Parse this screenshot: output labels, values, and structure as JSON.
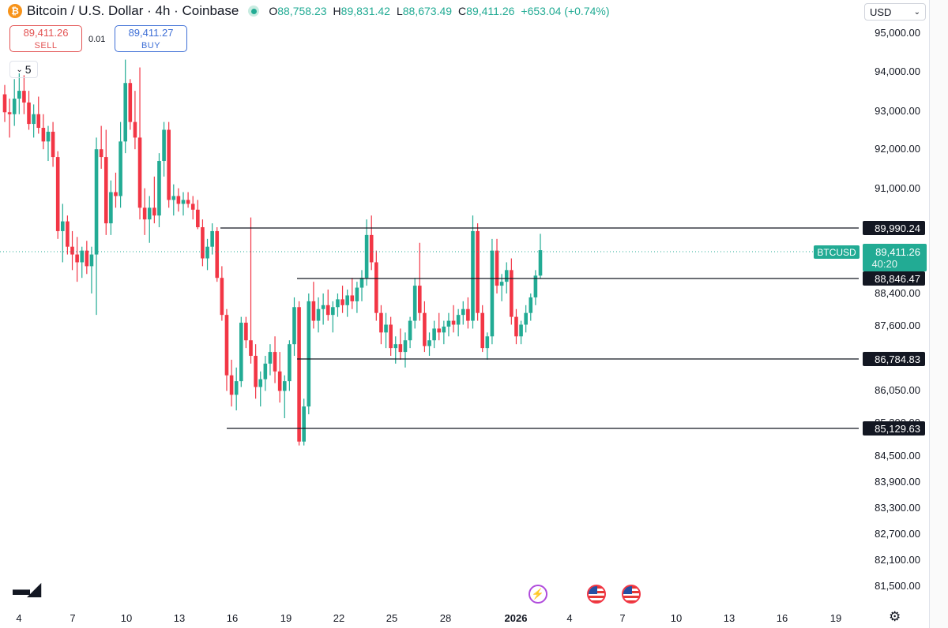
{
  "header": {
    "symbol_icon": "bitcoin-icon",
    "title": "Bitcoin / U.S. Dollar · 4h · Coinbase",
    "ohlc": [
      {
        "key": "O",
        "value": "88,758.23"
      },
      {
        "key": "H",
        "value": "89,831.42"
      },
      {
        "key": "L",
        "value": "88,673.49"
      },
      {
        "key": "C",
        "value": "89,411.26"
      }
    ],
    "change": "+653.04 (+0.74%)"
  },
  "trade": {
    "sell_price": "89,411.26",
    "sell_label": "SELL",
    "buy_price": "89,411.27",
    "buy_label": "BUY",
    "spread": "0.01"
  },
  "collapse_count": "5",
  "currency": "USD",
  "colors": {
    "up": "#22ab94",
    "down": "#f23645",
    "text": "#131722",
    "muted": "#6a6d78"
  },
  "chart_data": {
    "type": "candlestick",
    "symbol_label": "BTCUSD",
    "current_price": 89411.26,
    "current_price_text": "89,411.26",
    "countdown": "40:20",
    "y_ticks": [
      "95,000.00",
      "94,000.00",
      "93,000.00",
      "92,000.00",
      "91,000.00",
      "88,400.00",
      "87,600.00",
      "86,050.00",
      "85,300.00",
      "84,500.00",
      "83,900.00",
      "83,300.00",
      "82,700.00",
      "82,100.00",
      "81,500.00"
    ],
    "x_ticks": [
      "4",
      "7",
      "10",
      "13",
      "16",
      "19",
      "22",
      "25",
      "28",
      "2026",
      "4",
      "7",
      "10",
      "13",
      "16",
      "19"
    ],
    "levels": [
      {
        "value": 89990.24,
        "label": "89,990.24"
      },
      {
        "value": 88846.47,
        "label": "88,846.47"
      },
      {
        "value": 86784.83,
        "label": "86,784.83"
      },
      {
        "value": 85129.63,
        "label": "85,129.63"
      }
    ],
    "candles": [
      [
        93410,
        93650,
        92700,
        92950
      ],
      [
        92950,
        93300,
        92300,
        92900
      ],
      [
        92900,
        93800,
        92600,
        93300
      ],
      [
        93300,
        93950,
        92900,
        93500
      ],
      [
        93500,
        93900,
        92900,
        93200
      ],
      [
        93200,
        93500,
        92500,
        92650
      ],
      [
        92650,
        93150,
        92300,
        92900
      ],
      [
        92900,
        93350,
        92400,
        92550
      ],
      [
        92550,
        92900,
        92000,
        92200
      ],
      [
        92200,
        92600,
        91700,
        92450
      ],
      [
        92450,
        92700,
        91550,
        91800
      ],
      [
        91800,
        91950,
        89700,
        89900
      ],
      [
        89900,
        90600,
        89100,
        90150
      ],
      [
        90150,
        90300,
        89300,
        89500
      ],
      [
        89500,
        89900,
        88900,
        89300
      ],
      [
        89300,
        89750,
        88600,
        89100
      ],
      [
        89100,
        89500,
        88700,
        89400
      ],
      [
        89400,
        89650,
        88800,
        89000
      ],
      [
        89000,
        89500,
        88300,
        89300
      ],
      [
        89300,
        92300,
        87750,
        92000
      ],
      [
        92000,
        92600,
        91500,
        91800
      ],
      [
        91800,
        92500,
        89800,
        90100
      ],
      [
        90100,
        91200,
        89800,
        90900
      ],
      [
        90900,
        91400,
        90500,
        90800
      ],
      [
        90800,
        92700,
        90500,
        92200
      ],
      [
        92200,
        94300,
        91900,
        93700
      ],
      [
        93700,
        93800,
        92500,
        92700
      ],
      [
        92700,
        93500,
        92000,
        92300
      ],
      [
        92300,
        94100,
        90200,
        90500
      ],
      [
        90500,
        91000,
        89800,
        90200
      ],
      [
        90200,
        90800,
        89600,
        90500
      ],
      [
        90500,
        91300,
        90100,
        90300
      ],
      [
        90300,
        91900,
        90000,
        91700
      ],
      [
        91700,
        92700,
        91300,
        92500
      ],
      [
        92500,
        92700,
        90500,
        90700
      ],
      [
        90700,
        91100,
        90300,
        90800
      ],
      [
        90800,
        91000,
        90400,
        90600
      ],
      [
        90600,
        90900,
        90300,
        90700
      ],
      [
        90700,
        90900,
        90500,
        90600
      ],
      [
        90600,
        90800,
        90200,
        90450
      ],
      [
        90450,
        90700,
        89950,
        90000
      ],
      [
        90000,
        90200,
        89000,
        89200
      ],
      [
        89200,
        89700,
        88900,
        89500
      ],
      [
        89500,
        90100,
        89300,
        89900
      ],
      [
        89900,
        90000,
        88600,
        88700
      ],
      [
        88700,
        89000,
        87600,
        87750
      ],
      [
        87750,
        87900,
        85800,
        86200
      ],
      [
        86200,
        86600,
        85400,
        85700
      ],
      [
        85700,
        86400,
        85300,
        86050
      ],
      [
        86050,
        87700,
        85900,
        87550
      ],
      [
        87550,
        87700,
        86900,
        87100
      ],
      [
        87100,
        90250,
        86500,
        86700
      ],
      [
        86700,
        87000,
        85600,
        85900
      ],
      [
        85900,
        86300,
        85400,
        86100
      ],
      [
        86100,
        86700,
        85800,
        86500
      ],
      [
        86500,
        87000,
        86200,
        86800
      ],
      [
        86800,
        87200,
        86000,
        86300
      ],
      [
        86300,
        86800,
        85500,
        85800
      ],
      [
        85800,
        86200,
        85100,
        86050
      ],
      [
        86050,
        87100,
        85800,
        87000
      ],
      [
        87000,
        88200,
        86700,
        87950
      ],
      [
        87950,
        88100,
        84400,
        84500
      ],
      [
        84500,
        85600,
        84400,
        85400
      ],
      [
        85400,
        88300,
        85200,
        88100
      ],
      [
        88100,
        88600,
        87400,
        87600
      ],
      [
        87600,
        88200,
        87300,
        87900
      ],
      [
        87900,
        88300,
        87500,
        88000
      ],
      [
        88000,
        88400,
        87600,
        87750
      ],
      [
        87750,
        88100,
        87300,
        87950
      ],
      [
        87950,
        88300,
        87700,
        88150
      ],
      [
        88150,
        88500,
        87800,
        88000
      ],
      [
        88000,
        88400,
        87700,
        88250
      ],
      [
        88250,
        88700,
        87900,
        88100
      ],
      [
        88100,
        88600,
        87800,
        88450
      ],
      [
        88450,
        88900,
        88100,
        88700
      ],
      [
        88700,
        90200,
        88500,
        89800
      ],
      [
        89800,
        90300,
        88900,
        89100
      ],
      [
        89100,
        89400,
        87600,
        87800
      ],
      [
        87800,
        88000,
        87000,
        87300
      ],
      [
        87300,
        87800,
        86900,
        87500
      ],
      [
        87500,
        87700,
        86700,
        86900
      ],
      [
        86900,
        87200,
        86500,
        87000
      ],
      [
        87000,
        87400,
        86600,
        86800
      ],
      [
        86800,
        87300,
        86400,
        87100
      ],
      [
        87100,
        87700,
        86900,
        87600
      ],
      [
        87600,
        88700,
        87400,
        88500
      ],
      [
        88500,
        89600,
        87600,
        87800
      ],
      [
        87800,
        88100,
        86800,
        86950
      ],
      [
        86950,
        87300,
        86700,
        87100
      ],
      [
        87100,
        87600,
        86900,
        87400
      ],
      [
        87400,
        87800,
        87100,
        87300
      ],
      [
        87300,
        87600,
        87000,
        87450
      ],
      [
        87450,
        87800,
        87200,
        87600
      ],
      [
        87600,
        88000,
        87300,
        87500
      ],
      [
        87500,
        87900,
        87200,
        87750
      ],
      [
        87750,
        88100,
        87500,
        87900
      ],
      [
        87900,
        88200,
        87400,
        87600
      ],
      [
        87600,
        90300,
        87400,
        89900
      ],
      [
        89900,
        90100,
        87600,
        87800
      ],
      [
        87800,
        88000,
        86800,
        86900
      ],
      [
        86900,
        87300,
        86600,
        87200
      ],
      [
        87200,
        89700,
        87000,
        89400
      ],
      [
        89400,
        89700,
        88300,
        88500
      ],
      [
        88500,
        88800,
        88100,
        88600
      ],
      [
        88600,
        89100,
        88300,
        88900
      ],
      [
        88900,
        89200,
        87500,
        87700
      ],
      [
        87700,
        87900,
        87000,
        87200
      ],
      [
        87200,
        87600,
        87000,
        87500
      ],
      [
        87500,
        88000,
        87300,
        87800
      ],
      [
        87800,
        88300,
        87600,
        88200
      ],
      [
        88200,
        88900,
        88000,
        88758
      ],
      [
        88758,
        89831,
        88673,
        89411
      ]
    ]
  }
}
